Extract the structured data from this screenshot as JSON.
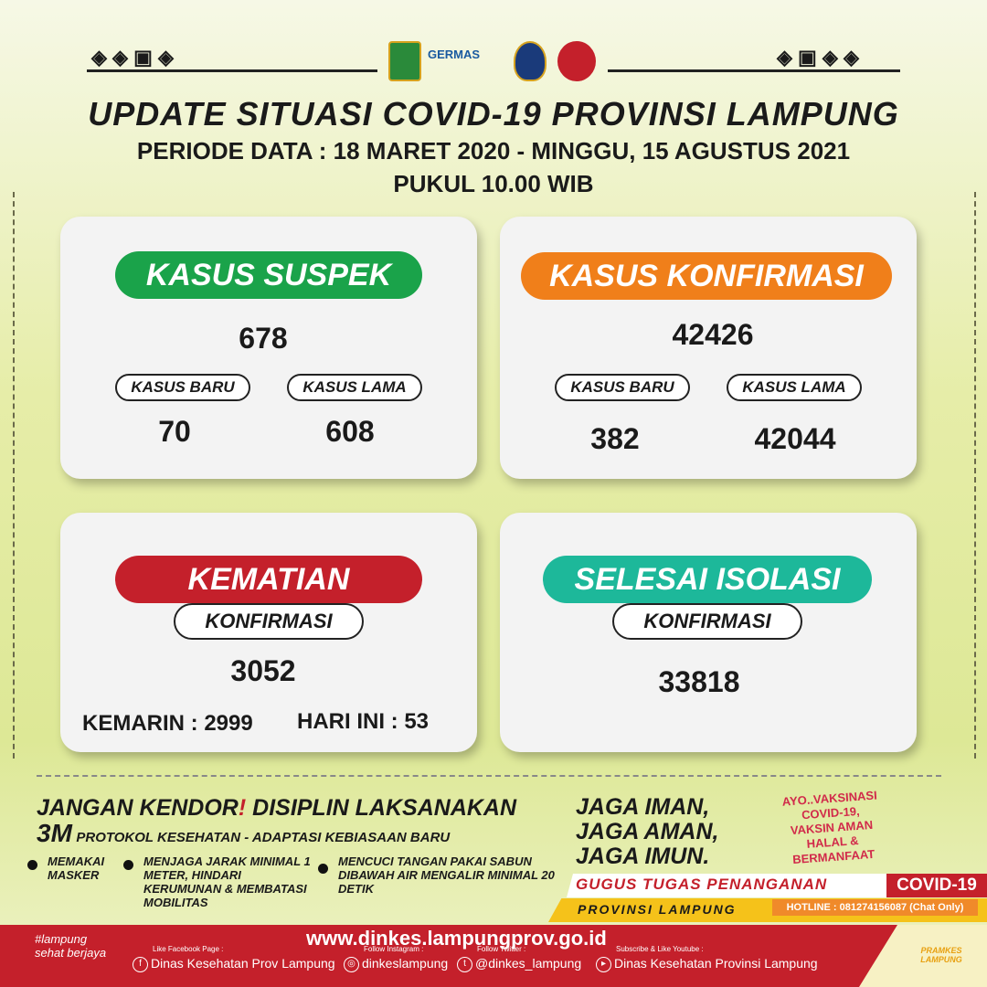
{
  "header": {
    "title": "UPDATE SITUASI COVID-19 PROVINSI LAMPUNG",
    "period": "PERIODE DATA : 18 MARET 2020 - MINGGU, 15 AGUSTUS 2021",
    "time": "PUKUL 10.00 WIB",
    "logos": [
      "LAMPUNG",
      "GERMAS",
      "LAMPUNG"
    ]
  },
  "suspek": {
    "label": "KASUS SUSPEK",
    "total": "678",
    "baru_label": "KASUS BARU",
    "lama_label": "KASUS LAMA",
    "baru": "70",
    "lama": "608",
    "color": "#1aa34a"
  },
  "konfirmasi": {
    "label": "KASUS KONFIRMASI",
    "total": "42426",
    "baru_label": "KASUS BARU",
    "lama_label": "KASUS LAMA",
    "baru": "382",
    "lama": "42044",
    "color": "#f07f1a"
  },
  "kematian": {
    "label": "KEMATIAN",
    "sub": "KONFIRMASI",
    "total": "3052",
    "kemarin": "KEMARIN : 2999",
    "hari_ini": "HARI INI : 53",
    "color": "#c4202b"
  },
  "selesai": {
    "label": "SELESAI ISOLASI",
    "sub": "KONFIRMASI",
    "total": "33818",
    "color": "#1db89a"
  },
  "campaign": {
    "line1a": "JANGAN KENDOR",
    "excl": "!",
    "line1b": "DISIPLIN LAKSANAKAN",
    "big3m": "3M",
    "line2": "PROTOKOL KESEHATAN - ADAPTASI KEBIASAAN BARU",
    "bullets": [
      "MEMAKAI MASKER",
      "MENJAGA JARAK MINIMAL 1 METER, HINDARI KERUMUNAN & MEMBATASI MOBILITAS",
      "MENCUCI TANGAN PAKAI SABUN DIBAWAH AIR MENGALIR MINIMAL 20 DETIK"
    ],
    "jaga": [
      "JAGA IMAN,",
      "JAGA AMAN,",
      "JAGA IMUN."
    ],
    "vaksin": [
      "AYO..VAKSINASI",
      "COVID-19,",
      "VAKSIN AMAN",
      "HALAL &",
      "BERMANFAAT"
    ]
  },
  "gugus": {
    "line": "GUGUS TUGAS PENANGANAN",
    "covid": "COVID-19",
    "prov": "PROVINSI LAMPUNG",
    "hotline": "HOTLINE : 081274156087 (Chat Only)"
  },
  "footer": {
    "hashtag": "#lampung sehat berjaya",
    "url": "www.dinkes.lampungprov.go.id",
    "fb_label": "Like Facebook Page :",
    "fb": "Dinas Kesehatan Prov Lampung",
    "ig_label": "Follow Instagram :",
    "ig": "dinkeslampung",
    "tw_label": "Follow Twitter :",
    "tw": "@dinkes_lampung",
    "yt_label": "Subscribe & Like Youtube :",
    "yt": "Dinas Kesehatan Provinsi Lampung",
    "brand": "PRAMKES LAMPUNG"
  }
}
